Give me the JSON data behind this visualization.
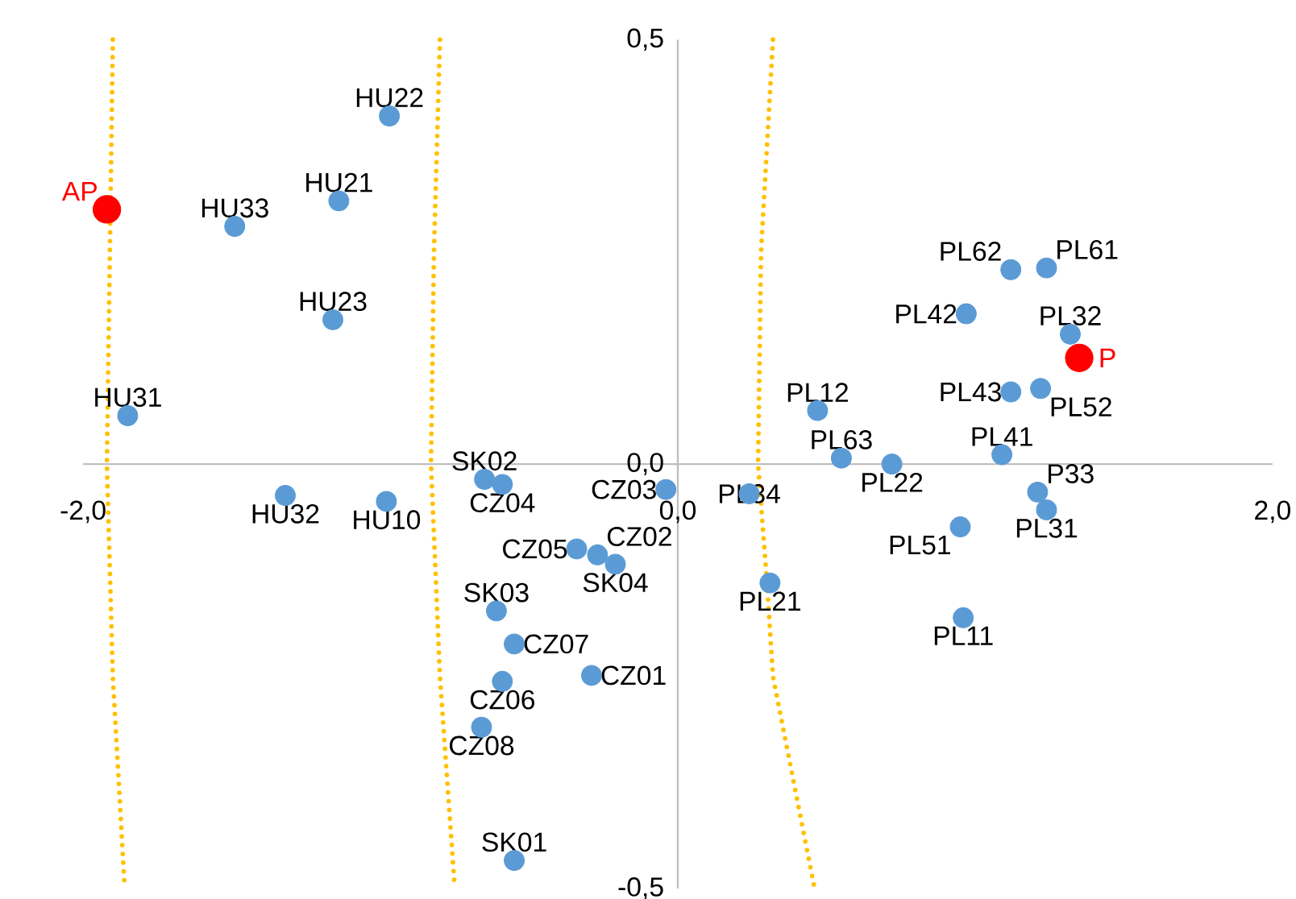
{
  "chart_data": {
    "type": "scatter",
    "marker": "circle",
    "xlim": [
      -2.0,
      2.0
    ],
    "ylim": [
      -0.5,
      0.5
    ],
    "xticks": [
      {
        "value": -2.0,
        "label": "-2,0"
      },
      {
        "value": 0.0,
        "label": "0,0"
      },
      {
        "value": 2.0,
        "label": "2,0"
      }
    ],
    "yticks": [
      {
        "value": -0.5,
        "label": "-0,5"
      },
      {
        "value": 0.0,
        "label": "0,0"
      },
      {
        "value": 0.5,
        "label": "0,5"
      }
    ],
    "series": [
      {
        "color": "#5b9bd5",
        "x": [
          -0.97,
          -1.14,
          -1.49,
          -1.16,
          -1.85,
          -1.32,
          -0.98,
          -0.65,
          -0.59,
          -0.04,
          -0.34,
          -0.27,
          -0.21,
          -0.61,
          -0.55,
          -0.29,
          -0.59,
          -0.66,
          -0.55,
          0.24,
          0.31,
          0.47,
          0.55,
          0.72,
          1.09,
          0.97,
          1.12,
          1.24,
          1.32,
          1.12,
          1.22,
          1.21,
          1.24,
          0.95,
          0.96
        ],
        "values": [
          0.41,
          0.31,
          0.28,
          0.17,
          0.057,
          -0.037,
          -0.044,
          -0.018,
          -0.024,
          -0.03,
          -0.1,
          -0.107,
          -0.118,
          -0.173,
          -0.212,
          -0.249,
          -0.256,
          -0.31,
          -0.467,
          -0.035,
          -0.14,
          0.063,
          0.007,
          0.0,
          0.011,
          0.177,
          0.229,
          0.231,
          0.153,
          0.085,
          0.089,
          -0.033,
          -0.054,
          -0.074,
          -0.181
        ]
      },
      {
        "color": "#ff0000",
        "x": [
          -1.92,
          1.35
        ],
        "values": [
          0.3,
          0.125
        ]
      },
      {
        "type": "line",
        "color": "#ffc000",
        "line_style": "dotted",
        "marker": "none",
        "x": [
          -1.9,
          -1.91,
          -1.92,
          -1.9,
          -1.86
        ],
        "values": [
          0.5,
          0.25,
          0.0,
          -0.25,
          -0.5
        ]
      },
      {
        "type": "line",
        "color": "#ffc000",
        "line_style": "dotted",
        "marker": "none",
        "x": [
          -0.8,
          -0.82,
          -0.83,
          -0.8,
          -0.75
        ],
        "values": [
          0.5,
          0.25,
          0.0,
          -0.25,
          -0.5
        ]
      },
      {
        "type": "line",
        "color": "#ffc000",
        "line_style": "dotted",
        "marker": "none",
        "x": [
          0.32,
          0.28,
          0.27,
          0.3,
          0.32,
          0.46
        ],
        "values": [
          0.5,
          0.25,
          0.0,
          -0.14,
          -0.25,
          -0.5
        ]
      }
    ],
    "annotations": [
      {
        "text": "AP",
        "x": -1.92,
        "y": 0.3
      },
      {
        "text": "HU22",
        "x": -0.97,
        "y": 0.41
      },
      {
        "text": "HU21",
        "x": -1.14,
        "y": 0.31
      },
      {
        "text": "HU33",
        "x": -1.49,
        "y": 0.28
      },
      {
        "text": "HU23",
        "x": -1.16,
        "y": 0.17
      },
      {
        "text": "HU31",
        "x": -1.85,
        "y": 0.057
      },
      {
        "text": "HU32",
        "x": -1.32,
        "y": -0.037
      },
      {
        "text": "HU10",
        "x": -0.98,
        "y": -0.044
      },
      {
        "text": "SK02",
        "x": -0.65,
        "y": -0.018
      },
      {
        "text": "CZ04",
        "x": -0.59,
        "y": -0.024
      },
      {
        "text": "CZ03",
        "x": -0.04,
        "y": -0.03
      },
      {
        "text": "CZ05",
        "x": -0.34,
        "y": -0.1
      },
      {
        "text": "CZ02",
        "x": -0.27,
        "y": -0.107
      },
      {
        "text": "SK04",
        "x": -0.21,
        "y": -0.118
      },
      {
        "text": "SK03",
        "x": -0.61,
        "y": -0.173
      },
      {
        "text": "CZ07",
        "x": -0.55,
        "y": -0.212
      },
      {
        "text": "CZ01",
        "x": -0.29,
        "y": -0.249
      },
      {
        "text": "CZ06",
        "x": -0.59,
        "y": -0.256
      },
      {
        "text": "CZ08",
        "x": -0.66,
        "y": -0.31
      },
      {
        "text": "SK01",
        "x": -0.55,
        "y": -0.467
      },
      {
        "text": "PL34",
        "x": 0.24,
        "y": -0.035
      },
      {
        "text": "PL21",
        "x": 0.31,
        "y": -0.14
      },
      {
        "text": "PL12",
        "x": 0.47,
        "y": 0.063
      },
      {
        "text": "PL63",
        "x": 0.55,
        "y": 0.007
      },
      {
        "text": "PL22",
        "x": 0.72,
        "y": 0.0
      },
      {
        "text": "PL41",
        "x": 1.09,
        "y": 0.011
      },
      {
        "text": "PL42",
        "x": 0.97,
        "y": 0.177
      },
      {
        "text": "PL62",
        "x": 1.12,
        "y": 0.229
      },
      {
        "text": "PL61",
        "x": 1.24,
        "y": 0.231
      },
      {
        "text": "PL32",
        "x": 1.32,
        "y": 0.153
      },
      {
        "text": "PL43",
        "x": 1.12,
        "y": 0.085
      },
      {
        "text": "PL52",
        "x": 1.22,
        "y": 0.089
      },
      {
        "text": "P33",
        "x": 1.21,
        "y": -0.033
      },
      {
        "text": "PL31",
        "x": 1.24,
        "y": -0.054
      },
      {
        "text": "PL51",
        "x": 0.95,
        "y": -0.074
      },
      {
        "text": "PL11",
        "x": 0.96,
        "y": -0.181
      },
      {
        "text": "P",
        "x": 1.35,
        "y": 0.125
      }
    ]
  }
}
